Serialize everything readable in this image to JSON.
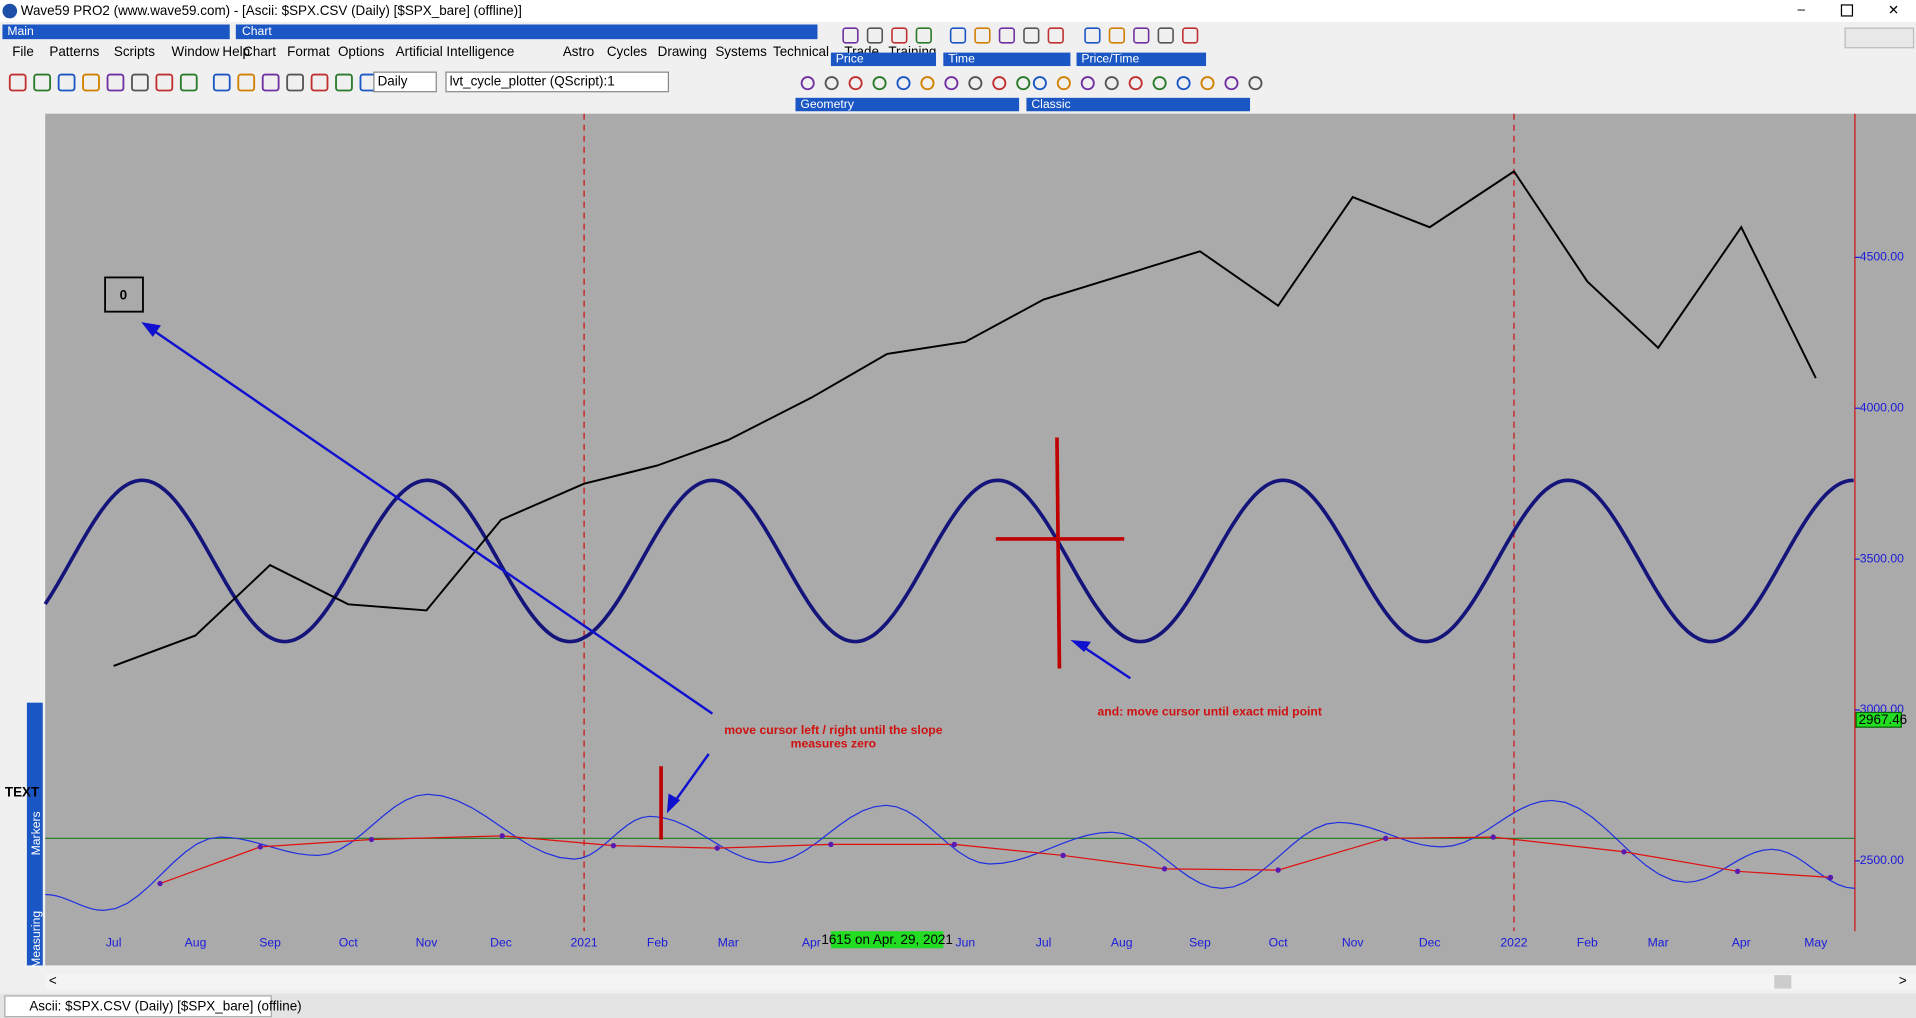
{
  "window": {
    "title": "Wave59 PRO2 (www.wave59.com) - [Ascii: $SPX.CSV (Daily) [$SPX_bare] (offline)]",
    "status_tab": "Ascii: $SPX.CSV (Daily) [$SPX_bare] (offline)"
  },
  "menus": {
    "main_label": "Main",
    "main": [
      "File",
      "Patterns",
      "Scripts",
      "Window",
      "Help"
    ],
    "chart_label": "Chart",
    "chart": [
      "Chart",
      "Format",
      "Options",
      "Artificial Intelligence",
      "Astro",
      "Cycles",
      "Drawing",
      "Systems",
      "Technical",
      "Trade",
      "Training"
    ]
  },
  "toolbar": {
    "panels": [
      "Price",
      "Time",
      "Price/Time",
      "Geometry",
      "Classic"
    ],
    "interval": "Daily",
    "script": "lvt_cycle_plotter (QScript):1"
  },
  "side_panel": {
    "labels": [
      "Markers",
      "Measuring"
    ],
    "text_tool": "TEXT"
  },
  "chart": {
    "ylim": [
      2267,
      4976
    ],
    "yticks": [
      {
        "value": 4500,
        "label": "4500.00"
      },
      {
        "value": 4000,
        "label": "4000.00"
      },
      {
        "value": 3500,
        "label": "3500.00"
      },
      {
        "value": 3000,
        "label": "3000.00"
      },
      {
        "value": 2500,
        "label": "2500.00"
      }
    ],
    "categories": [
      "Jul",
      "Aug",
      "Sep",
      "Oct",
      "Nov",
      "Dec",
      "2021",
      "Feb",
      "Mar",
      "Apr",
      null,
      "Jun",
      "Jul",
      "Aug",
      "Sep",
      "Oct",
      "Nov",
      "Dec",
      "2022",
      "Feb",
      "Mar",
      "Apr",
      "May"
    ],
    "close": [
      3146,
      3247,
      3480,
      3350,
      3330,
      3630,
      3750,
      3810,
      3895,
      4035,
      4180,
      4220,
      4360,
      4440,
      4520,
      4340,
      4700,
      4600,
      4785,
      4420,
      4200,
      4600,
      4100
    ],
    "last_price": 2967.46,
    "cursor_readout": "1615 on Apr. 29, 2021",
    "counter": "0",
    "annotation_slope": [
      "move cursor left / right until the slope",
      "measures zero"
    ],
    "annotation_mid": "and: move cursor until exact mid point"
  }
}
